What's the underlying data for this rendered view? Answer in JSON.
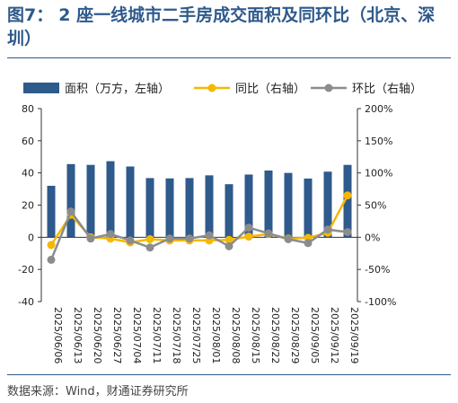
{
  "figure": {
    "number": "图7：",
    "title": "2 座一线城市二手房成交面积及同环比（北京、深圳）",
    "source": "数据来源：Wind，财通证券研究所"
  },
  "chart_data": {
    "type": "bar",
    "categories": [
      "2025/06/06",
      "2025/06/13",
      "2025/06/20",
      "2025/06/27",
      "2025/07/04",
      "2025/07/11",
      "2025/07/18",
      "2025/07/25",
      "2025/08/01",
      "2025/08/08",
      "2025/08/15",
      "2025/08/22",
      "2025/08/29",
      "2025/09/05",
      "2025/09/12",
      "2025/09/19"
    ],
    "y_left": {
      "ylim": [
        -40,
        80
      ],
      "ticks": [
        "-40",
        "-20",
        "0",
        "20",
        "40",
        "60",
        "80"
      ]
    },
    "y_right": {
      "ylim": [
        -100,
        200
      ],
      "ticks": [
        "-100%",
        "-50%",
        "0%",
        "50%",
        "100%",
        "150%",
        "200%"
      ]
    },
    "legend_position": "top",
    "grid": false,
    "series": [
      {
        "name": "面积（万方，左轴）",
        "type": "bar",
        "axis": "left",
        "color": "#2e5a8c",
        "values": [
          32.0,
          45.5,
          45.0,
          47.3,
          44.0,
          36.8,
          36.6,
          36.8,
          38.5,
          33.0,
          39.0,
          41.5,
          40.0,
          36.5,
          40.8,
          45.0
        ]
      },
      {
        "name": "同比（右轴）",
        "type": "line",
        "axis": "right",
        "color": "#f5b800",
        "values": [
          -12,
          35,
          0,
          -2,
          -8,
          -3,
          -5,
          -5,
          -5,
          -4,
          1,
          5,
          -2,
          -1,
          7,
          65
        ]
      },
      {
        "name": "环比（右轴）",
        "type": "line",
        "axis": "right",
        "color": "#8c8c8c",
        "values": [
          -35,
          40,
          -2,
          5,
          -5,
          -16,
          -2,
          -2,
          3,
          -14,
          15,
          6,
          -3,
          -9,
          12,
          8
        ]
      }
    ]
  }
}
